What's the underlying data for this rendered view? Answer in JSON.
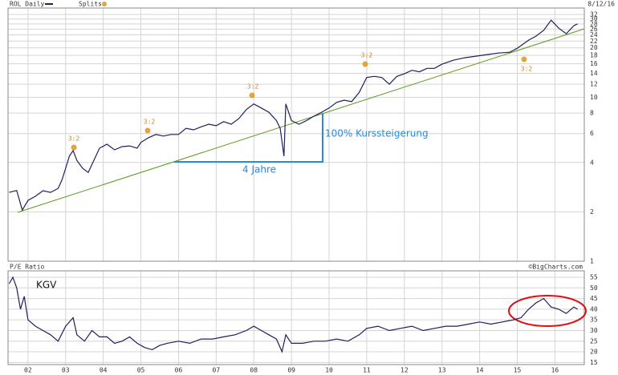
{
  "chart_data": [
    {
      "type": "line",
      "title": "ROL Daily",
      "date": "8/12/16",
      "log_scale": true,
      "grid": true,
      "color": "#1f1f5c",
      "splits": {
        "label": "Splits",
        "labels": [
          "3:2",
          "3:2",
          "3:2",
          "3:2",
          "3:2"
        ]
      },
      "annotations": [
        "100% Kurssteigerung",
        "4 Jahre"
      ],
      "x": [
        2001.5,
        2001.7,
        2001.85,
        2002.0,
        2002.2,
        2002.4,
        2002.6,
        2002.8,
        2002.9,
        2003.0,
        2003.1,
        2003.2,
        2003.3,
        2003.45,
        2003.6,
        2003.75,
        2003.9,
        2004.1,
        2004.3,
        2004.5,
        2004.7,
        2004.9,
        2005.0,
        2005.2,
        2005.4,
        2005.6,
        2005.8,
        2006.0,
        2006.2,
        2006.4,
        2006.6,
        2006.8,
        2007.0,
        2007.2,
        2007.4,
        2007.6,
        2007.8,
        2008.0,
        2008.2,
        2008.4,
        2008.6,
        2008.7,
        2008.8,
        2008.85,
        2009.0,
        2009.2,
        2009.4,
        2009.6,
        2009.8,
        2010.0,
        2010.2,
        2010.4,
        2010.6,
        2010.8,
        2011.0,
        2011.2,
        2011.4,
        2011.6,
        2011.8,
        2012.0,
        2012.2,
        2012.4,
        2012.6,
        2012.8,
        2013.0,
        2013.3,
        2013.6,
        2013.9,
        2014.2,
        2014.5,
        2014.8,
        2015.0,
        2015.3,
        2015.5,
        2015.7,
        2015.9,
        2016.1,
        2016.3,
        2016.5,
        2016.6
      ],
      "values": [
        2.63,
        2.7,
        2.05,
        2.35,
        2.49,
        2.69,
        2.63,
        2.78,
        3.12,
        3.69,
        4.37,
        4.73,
        4.12,
        3.69,
        3.48,
        4.12,
        4.89,
        5.17,
        4.78,
        5.0,
        5.05,
        4.89,
        5.3,
        5.66,
        5.93,
        5.8,
        5.93,
        5.93,
        6.46,
        6.33,
        6.6,
        6.85,
        6.7,
        7.1,
        6.85,
        7.4,
        8.4,
        9.1,
        8.6,
        8.1,
        7.2,
        6.46,
        4.37,
        9.1,
        7.2,
        6.85,
        7.2,
        7.67,
        8.1,
        8.6,
        9.3,
        9.6,
        9.4,
        10.7,
        13.2,
        13.4,
        13.2,
        12.0,
        13.4,
        13.9,
        14.6,
        14.3,
        15.0,
        15.0,
        15.9,
        16.8,
        17.4,
        17.8,
        18.2,
        18.6,
        18.8,
        19.9,
        22.3,
        23.6,
        25.6,
        29.5,
        26.4,
        24.4,
        27.3,
        28
      ],
      "xlim": [
        2001.47,
        2016.78
      ],
      "xticks": [
        {
          "value": 2002,
          "label": "02"
        },
        {
          "value": 2003,
          "label": "03"
        },
        {
          "value": 2004,
          "label": "04"
        },
        {
          "value": 2005,
          "label": "05"
        },
        {
          "value": 2006,
          "label": "06"
        },
        {
          "value": 2007,
          "label": "07"
        },
        {
          "value": 2008,
          "label": "08"
        },
        {
          "value": 2009,
          "label": "09"
        },
        {
          "value": 2010,
          "label": "10"
        },
        {
          "value": 2011,
          "label": "11"
        },
        {
          "value": 2012,
          "label": "12"
        },
        {
          "value": 2013,
          "label": "13"
        },
        {
          "value": 2014,
          "label": "14"
        },
        {
          "value": 2015,
          "label": "15"
        },
        {
          "value": 2016,
          "label": "16"
        }
      ],
      "ylim": [
        1,
        35
      ],
      "yticks": [
        1,
        2,
        4,
        6,
        8,
        10,
        12,
        14,
        16,
        18,
        20,
        22,
        24,
        26,
        28,
        30,
        32
      ]
    },
    {
      "type": "line",
      "title": "P/E Ratio",
      "label": "KGV",
      "source": "©BigCharts.com",
      "log_scale": false,
      "grid": true,
      "color": "#1f1f5c",
      "x": [
        2001.5,
        2001.6,
        2001.7,
        2001.8,
        2001.9,
        2002.0,
        2002.2,
        2002.4,
        2002.6,
        2002.8,
        2003.0,
        2003.2,
        2003.3,
        2003.5,
        2003.7,
        2003.9,
        2004.1,
        2004.3,
        2004.5,
        2004.7,
        2004.9,
        2005.1,
        2005.3,
        2005.5,
        2005.7,
        2006.0,
        2006.3,
        2006.6,
        2006.9,
        2007.2,
        2007.5,
        2007.8,
        2008.0,
        2008.2,
        2008.4,
        2008.6,
        2008.75,
        2008.85,
        2009.0,
        2009.3,
        2009.6,
        2009.9,
        2010.2,
        2010.5,
        2010.8,
        2011.0,
        2011.3,
        2011.6,
        2011.9,
        2012.2,
        2012.5,
        2012.8,
        2013.1,
        2013.4,
        2013.7,
        2014.0,
        2014.3,
        2014.6,
        2014.9,
        2015.1,
        2015.3,
        2015.5,
        2015.7,
        2015.9,
        2016.1,
        2016.3,
        2016.5,
        2016.6
      ],
      "values": [
        52,
        55,
        50,
        40,
        46,
        35,
        32,
        30,
        28,
        25,
        32,
        36,
        28,
        25,
        30,
        27,
        27,
        24,
        25,
        27,
        24,
        22,
        21,
        23,
        24,
        25,
        24,
        26,
        26,
        27,
        28,
        30,
        32,
        30,
        28,
        26,
        20,
        28,
        24,
        24,
        25,
        25,
        26,
        25,
        28,
        31,
        32,
        30,
        31,
        32,
        30,
        31,
        32,
        32,
        33,
        34,
        33,
        34,
        35,
        36,
        40,
        43,
        45,
        41,
        40,
        38,
        41,
        40
      ],
      "xlim": [
        2001.47,
        2016.78
      ],
      "xticks": [
        {
          "value": 2002,
          "label": "02"
        },
        {
          "value": 2003,
          "label": "03"
        },
        {
          "value": 2004,
          "label": "04"
        },
        {
          "value": 2005,
          "label": "05"
        },
        {
          "value": 2006,
          "label": "06"
        },
        {
          "value": 2007,
          "label": "07"
        },
        {
          "value": 2008,
          "label": "08"
        },
        {
          "value": 2009,
          "label": "09"
        },
        {
          "value": 2010,
          "label": "10"
        },
        {
          "value": 2011,
          "label": "11"
        },
        {
          "value": 2012,
          "label": "12"
        },
        {
          "value": 2013,
          "label": "13"
        },
        {
          "value": 2014,
          "label": "14"
        },
        {
          "value": 2015,
          "label": "15"
        },
        {
          "value": 2016,
          "label": "16"
        }
      ],
      "ylim": [
        14,
        58
      ],
      "yticks": [
        15,
        20,
        25,
        30,
        35,
        40,
        45,
        50,
        55
      ]
    }
  ]
}
